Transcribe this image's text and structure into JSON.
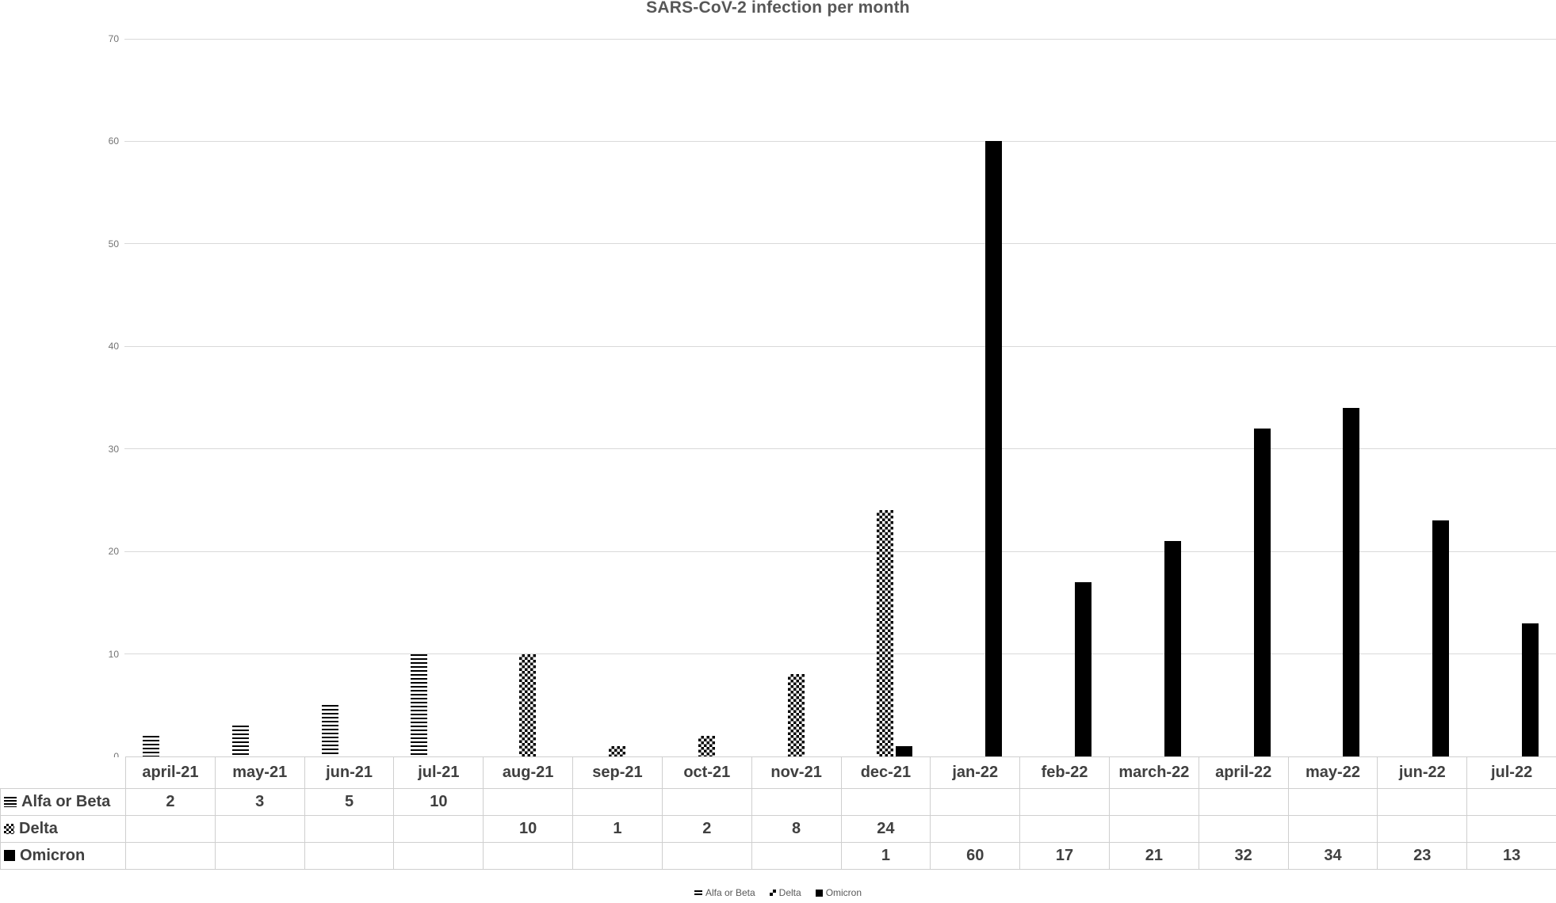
{
  "title": "SARS-CoV-2 infection per month",
  "colors": {
    "bar": "#000000",
    "gridline": "#d9d9d9",
    "axis_text": "#737373",
    "table_text": "#404040",
    "title_text": "#575757",
    "table_border": "#cfcfcf"
  },
  "chart_data": {
    "type": "bar",
    "title": "SARS-CoV-2 infection per month",
    "xlabel": "",
    "ylabel": "",
    "ylim": [
      0,
      70
    ],
    "ytick_step": 10,
    "grid": true,
    "legend_position": "bottom",
    "categories": [
      "april-21",
      "may-21",
      "jun-21",
      "jul-21",
      "aug-21",
      "sep-21",
      "oct-21",
      "nov-21",
      "dec-21",
      "jan-22",
      "feb-22",
      "march-22",
      "april-22",
      "may-22",
      "jun-22",
      "jul-22"
    ],
    "series": [
      {
        "name": "Alfa or Beta",
        "pattern": "stripes",
        "values": [
          2,
          3,
          5,
          10,
          null,
          null,
          null,
          null,
          null,
          null,
          null,
          null,
          null,
          null,
          null,
          null
        ]
      },
      {
        "name": "Delta",
        "pattern": "checker",
        "values": [
          null,
          null,
          null,
          null,
          10,
          1,
          2,
          8,
          24,
          null,
          null,
          null,
          null,
          null,
          null,
          null
        ]
      },
      {
        "name": "Omicron",
        "pattern": "solid",
        "values": [
          null,
          null,
          null,
          null,
          null,
          null,
          null,
          null,
          1,
          60,
          17,
          21,
          32,
          34,
          23,
          13
        ]
      }
    ]
  }
}
